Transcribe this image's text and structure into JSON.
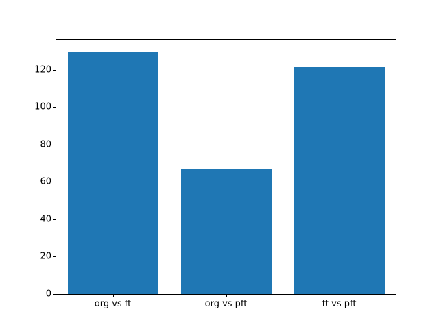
{
  "chart_data": {
    "type": "bar",
    "categories": [
      "org vs ft",
      "org vs pft",
      "ft vs pft"
    ],
    "values": [
      129.5,
      66.9,
      121.3
    ],
    "title": "",
    "xlabel": "",
    "ylabel": "",
    "ylim": [
      0,
      136
    ],
    "yticks": [
      0,
      20,
      40,
      60,
      80,
      100,
      120
    ],
    "bar_color": "#1f77b4",
    "bar_width_fraction": 0.8,
    "grid": false,
    "legend": null
  }
}
